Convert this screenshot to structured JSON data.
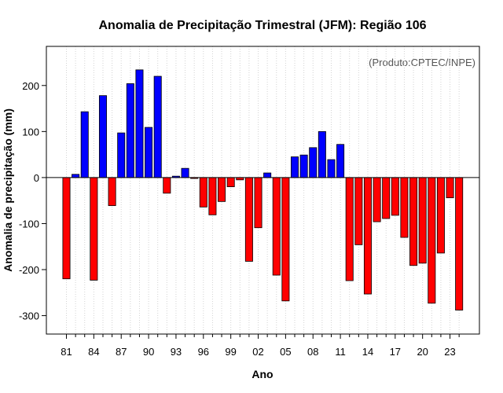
{
  "chart_data": {
    "type": "bar",
    "title": "Anomalia de Precipitação Trimestral (JFM): Região 106",
    "xlabel": "Ano",
    "ylabel": "Anomalia de precipitação (mm)",
    "credit": "(Produto:CPTEC/INPE)",
    "ylim": [
      -340,
      285
    ],
    "yticks": [
      -300,
      -200,
      -100,
      0,
      100,
      200
    ],
    "xtick_labels": [
      "81",
      "84",
      "87",
      "90",
      "93",
      "96",
      "99",
      "02",
      "05",
      "08",
      "11",
      "14",
      "17",
      "20",
      "23"
    ],
    "xtick_step": 3,
    "grid": true,
    "positive_color": "#0000ff",
    "negative_color": "#ff0000",
    "categories": [
      "1981",
      "1982",
      "1983",
      "1984",
      "1985",
      "1986",
      "1987",
      "1988",
      "1989",
      "1990",
      "1991",
      "1992",
      "1993",
      "1994",
      "1995",
      "1996",
      "1997",
      "1998",
      "1999",
      "2000",
      "2001",
      "2002",
      "2003",
      "2004",
      "2005",
      "2006",
      "2007",
      "2008",
      "2009",
      "2010",
      "2011",
      "2012",
      "2013",
      "2014",
      "2015",
      "2016",
      "2017",
      "2018",
      "2019",
      "2020",
      "2021",
      "2022",
      "2023",
      "2024"
    ],
    "values": [
      -220,
      7,
      143,
      -223,
      178,
      -61,
      97,
      204,
      234,
      109,
      220,
      -34,
      3,
      20,
      -2,
      -64,
      -81,
      -52,
      -20,
      -5,
      -182,
      -109,
      10,
      -212,
      -268,
      45,
      49,
      65,
      100,
      39,
      72,
      -224,
      -146,
      -253,
      -96,
      -89,
      -82,
      -130,
      -191,
      -186,
      -273,
      -164,
      -44,
      -288
    ]
  }
}
